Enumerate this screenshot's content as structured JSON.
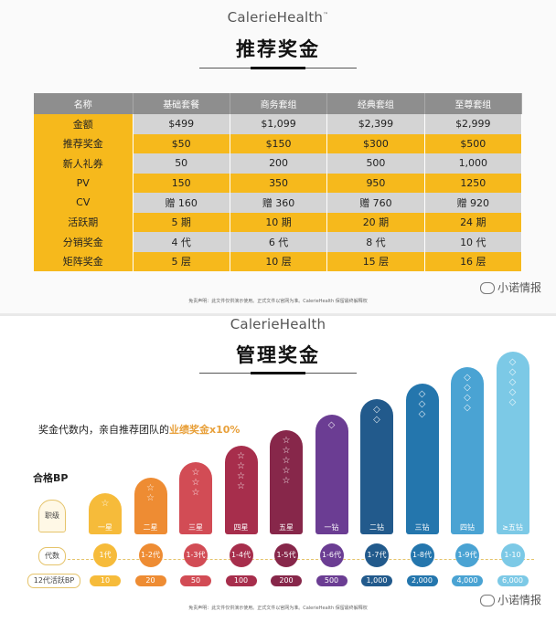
{
  "brand": "CalerieHealth",
  "brand_tm": "™",
  "top": {
    "title": "推荐奖金",
    "table": {
      "headers": [
        "名称",
        "基础套餐",
        "商务套组",
        "经典套组",
        "至尊套组"
      ],
      "rows": [
        {
          "label": "金额",
          "values": [
            "$499",
            "$1,099",
            "$2,399",
            "$2,999"
          ],
          "style": "g"
        },
        {
          "label": "推荐奖金",
          "values": [
            "$50",
            "$150",
            "$300",
            "$500"
          ],
          "style": "y"
        },
        {
          "label": "新人礼券",
          "values": [
            "50",
            "200",
            "500",
            "1,000"
          ],
          "style": "g"
        },
        {
          "label": "PV",
          "values": [
            "150",
            "350",
            "950",
            "1250"
          ],
          "style": "y"
        },
        {
          "label": "CV",
          "values": [
            "赠 160",
            "赠 360",
            "赠 760",
            "赠 920"
          ],
          "style": "g"
        },
        {
          "label": "活跃期",
          "values": [
            "5 期",
            "10 期",
            "20 期",
            "24 期"
          ],
          "style": "y"
        },
        {
          "label": "分销奖金",
          "values": [
            "4 代",
            "6 代",
            "8 代",
            "10 代"
          ],
          "style": "g"
        },
        {
          "label": "矩阵奖金",
          "values": [
            "5 层",
            "10 层",
            "15 层",
            "16 层"
          ],
          "style": "y"
        }
      ]
    },
    "disclaimer": "免责声明：此文件仅供演示使用。正式文件以官网为准。CalerieHealth 保留最终解释权",
    "watermark": "小诺情报"
  },
  "bottom": {
    "title": "管理奖金",
    "desc_prefix": "奖金代数内，亲自推荐团队的",
    "desc_highlight": "业绩奖金x10%",
    "qualify_label": "合格BP",
    "level_label": "职级",
    "gen_label": "代数",
    "bp_label": "12代活跃BP",
    "ranks": [
      {
        "name": "一星",
        "gen": "1代",
        "bp": "10",
        "color": "#f6bb3a",
        "glyph": "☆",
        "count": 1
      },
      {
        "name": "二星",
        "gen": "1-2代",
        "bp": "20",
        "color": "#ee8c33",
        "glyph": "☆",
        "count": 2
      },
      {
        "name": "三星",
        "gen": "1-3代",
        "bp": "50",
        "color": "#d24c55",
        "glyph": "☆",
        "count": 3
      },
      {
        "name": "四星",
        "gen": "1-4代",
        "bp": "100",
        "color": "#a72e4c",
        "glyph": "☆",
        "count": 4
      },
      {
        "name": "五星",
        "gen": "1-5代",
        "bp": "200",
        "color": "#87274a",
        "glyph": "☆",
        "count": 5
      },
      {
        "name": "一钻",
        "gen": "1-6代",
        "bp": "500",
        "color": "#6b3d93",
        "glyph": "◇",
        "count": 1
      },
      {
        "name": "二钻",
        "gen": "1-7代",
        "bp": "1,000",
        "color": "#225a8c",
        "glyph": "◇",
        "count": 2
      },
      {
        "name": "三钻",
        "gen": "1-8代",
        "bp": "2,000",
        "color": "#2476ad",
        "glyph": "◇",
        "count": 3
      },
      {
        "name": "四钻",
        "gen": "1-9代",
        "bp": "4,000",
        "color": "#4aa3d3",
        "glyph": "◇",
        "count": 4
      },
      {
        "name": "≥五钻",
        "gen": "1-10代",
        "bp": "6,000",
        "color": "#7cc9e6",
        "glyph": "◇",
        "count": 5
      }
    ],
    "disclaimer": "免责声明：此文件仅供演示使用。正式文件以官网为准。CalerieHealth 保留最终解释权",
    "watermark": "小诺情报"
  }
}
